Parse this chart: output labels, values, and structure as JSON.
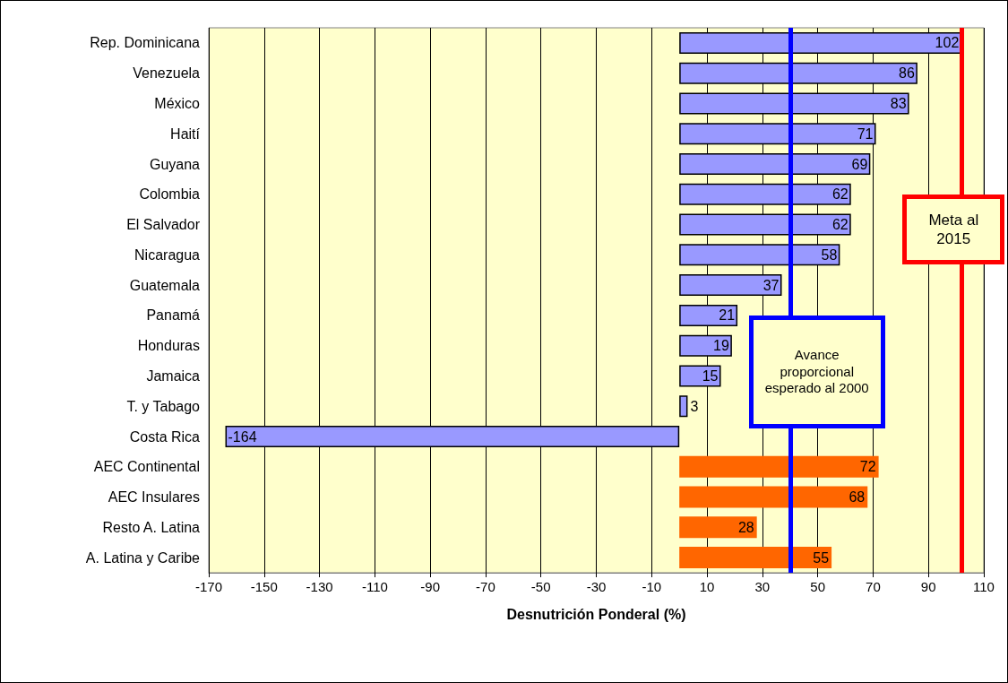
{
  "chart_data": {
    "type": "bar",
    "orientation": "horizontal",
    "xlabel": "Desnutrición Ponderal (%)",
    "categories": [
      "Rep. Dominicana",
      "Venezuela",
      "México",
      "Haití",
      "Guyana",
      "Colombia",
      "El Salvador",
      "Nicaragua",
      "Guatemala",
      "Panamá",
      "Honduras",
      "Jamaica",
      "T. y Tabago",
      "Costa Rica",
      "AEC Continental",
      "AEC Insulares",
      "Resto A. Latina",
      "A. Latina y Caribe"
    ],
    "values": [
      102,
      86,
      83,
      71,
      69,
      62,
      62,
      58,
      37,
      21,
      19,
      15,
      3,
      -164,
      72,
      68,
      28,
      55
    ],
    "colors": [
      "#9999ff",
      "#9999ff",
      "#9999ff",
      "#9999ff",
      "#9999ff",
      "#9999ff",
      "#9999ff",
      "#9999ff",
      "#9999ff",
      "#9999ff",
      "#9999ff",
      "#9999ff",
      "#9999ff",
      "#9999ff",
      "#ff6600",
      "#ff6600",
      "#ff6600",
      "#ff6600"
    ],
    "data_labels": true,
    "xlim": [
      -170,
      110
    ],
    "xticks": [
      -170,
      -150,
      -130,
      -110,
      -90,
      -70,
      -50,
      -30,
      -10,
      10,
      30,
      50,
      70,
      90,
      110
    ],
    "grid": "x",
    "ref_lines": [
      {
        "axis": "x",
        "value": 40,
        "label": "Avance proporcional esperado al 2000",
        "color": "#0000ff"
      },
      {
        "axis": "x",
        "value": 102,
        "label": "Meta al 2015",
        "color": "#ff0000"
      }
    ]
  }
}
